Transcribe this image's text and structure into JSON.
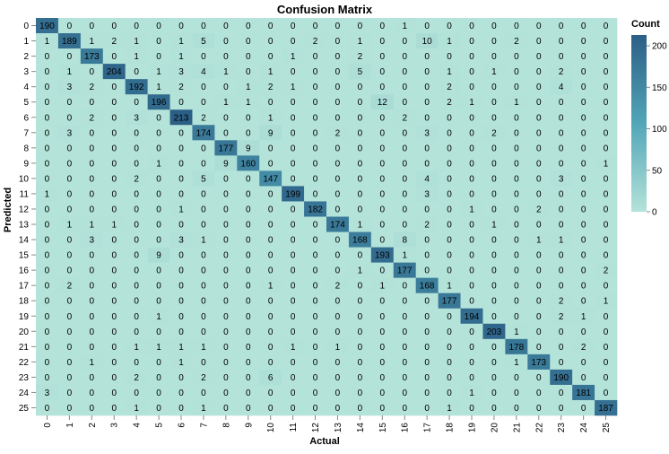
{
  "chart_data": {
    "type": "heatmap",
    "title": "Confusion Matrix",
    "xlabel": "Actual",
    "ylabel": "Predicted",
    "legend_title": "Count",
    "legend_ticks": [
      0,
      50,
      100,
      150,
      200
    ],
    "legend_placement": "right",
    "color_range": [
      0,
      213
    ],
    "color_low": "#b4e3d9",
    "color_high": "#2c5f86",
    "grid": false,
    "x_labels": [
      "0",
      "1",
      "2",
      "3",
      "4",
      "5",
      "6",
      "7",
      "8",
      "9",
      "10",
      "11",
      "12",
      "13",
      "14",
      "15",
      "16",
      "17",
      "18",
      "19",
      "20",
      "21",
      "22",
      "23",
      "24",
      "25"
    ],
    "y_labels": [
      "0",
      "1",
      "2",
      "3",
      "4",
      "5",
      "6",
      "7",
      "8",
      "9",
      "10",
      "11",
      "12",
      "13",
      "14",
      "15",
      "16",
      "17",
      "18",
      "19",
      "20",
      "21",
      "22",
      "23",
      "24",
      "25"
    ],
    "matrix": [
      [
        190,
        0,
        0,
        0,
        0,
        0,
        0,
        0,
        0,
        0,
        0,
        0,
        0,
        0,
        0,
        0,
        1,
        0,
        0,
        0,
        0,
        0,
        0,
        0,
        0,
        0
      ],
      [
        1,
        189,
        1,
        2,
        1,
        0,
        1,
        5,
        0,
        0,
        0,
        0,
        2,
        0,
        1,
        0,
        0,
        10,
        1,
        0,
        0,
        2,
        0,
        0,
        0,
        0
      ],
      [
        0,
        0,
        173,
        0,
        1,
        0,
        1,
        0,
        0,
        0,
        0,
        1,
        0,
        0,
        2,
        0,
        0,
        0,
        0,
        0,
        0,
        0,
        0,
        0,
        0,
        0
      ],
      [
        0,
        1,
        0,
        204,
        0,
        1,
        3,
        4,
        1,
        0,
        1,
        0,
        0,
        0,
        5,
        0,
        0,
        0,
        1,
        0,
        1,
        0,
        0,
        2,
        0,
        0
      ],
      [
        0,
        3,
        2,
        0,
        192,
        1,
        2,
        0,
        0,
        1,
        2,
        1,
        0,
        0,
        0,
        0,
        0,
        0,
        2,
        0,
        0,
        0,
        0,
        4,
        0,
        0
      ],
      [
        0,
        0,
        0,
        0,
        0,
        196,
        0,
        0,
        1,
        1,
        0,
        0,
        0,
        0,
        0,
        12,
        0,
        0,
        2,
        1,
        0,
        1,
        0,
        0,
        0,
        0
      ],
      [
        0,
        0,
        2,
        0,
        3,
        0,
        213,
        2,
        0,
        0,
        1,
        0,
        0,
        0,
        0,
        0,
        2,
        0,
        0,
        0,
        0,
        0,
        0,
        0,
        0,
        0
      ],
      [
        0,
        3,
        0,
        0,
        0,
        0,
        0,
        174,
        0,
        0,
        9,
        0,
        0,
        2,
        0,
        0,
        0,
        3,
        0,
        0,
        2,
        0,
        0,
        0,
        0,
        0
      ],
      [
        0,
        0,
        0,
        0,
        0,
        0,
        0,
        0,
        177,
        9,
        0,
        0,
        0,
        0,
        0,
        0,
        0,
        0,
        0,
        0,
        0,
        0,
        0,
        0,
        0,
        0
      ],
      [
        0,
        0,
        0,
        0,
        0,
        1,
        0,
        0,
        9,
        160,
        0,
        0,
        0,
        0,
        0,
        0,
        0,
        0,
        0,
        0,
        0,
        0,
        0,
        0,
        0,
        1
      ],
      [
        0,
        0,
        0,
        0,
        2,
        0,
        0,
        5,
        0,
        0,
        147,
        0,
        0,
        0,
        0,
        0,
        0,
        4,
        0,
        0,
        0,
        0,
        0,
        3,
        0,
        0
      ],
      [
        1,
        0,
        0,
        0,
        0,
        0,
        0,
        0,
        0,
        0,
        0,
        199,
        0,
        0,
        0,
        0,
        0,
        3,
        0,
        0,
        0,
        0,
        0,
        0,
        0,
        0
      ],
      [
        0,
        0,
        0,
        0,
        0,
        0,
        1,
        0,
        0,
        0,
        0,
        0,
        182,
        0,
        0,
        0,
        0,
        0,
        0,
        1,
        0,
        0,
        2,
        0,
        0,
        0
      ],
      [
        0,
        1,
        1,
        1,
        0,
        0,
        0,
        0,
        0,
        0,
        0,
        0,
        0,
        174,
        1,
        0,
        0,
        2,
        0,
        0,
        1,
        0,
        0,
        0,
        0,
        0
      ],
      [
        0,
        0,
        3,
        0,
        0,
        0,
        3,
        1,
        0,
        0,
        0,
        0,
        0,
        0,
        168,
        0,
        8,
        0,
        0,
        0,
        0,
        0,
        1,
        1,
        0,
        0
      ],
      [
        0,
        0,
        0,
        0,
        0,
        9,
        0,
        0,
        0,
        0,
        0,
        0,
        0,
        0,
        0,
        193,
        1,
        0,
        0,
        0,
        0,
        0,
        0,
        0,
        0,
        0
      ],
      [
        0,
        0,
        0,
        0,
        0,
        0,
        0,
        0,
        0,
        0,
        0,
        0,
        0,
        0,
        1,
        0,
        177,
        0,
        0,
        0,
        0,
        0,
        0,
        0,
        0,
        2
      ],
      [
        0,
        2,
        0,
        0,
        0,
        0,
        0,
        0,
        0,
        0,
        1,
        0,
        0,
        2,
        0,
        1,
        0,
        168,
        1,
        0,
        0,
        0,
        0,
        0,
        0,
        0
      ],
      [
        0,
        0,
        0,
        0,
        0,
        0,
        0,
        0,
        0,
        0,
        0,
        0,
        0,
        0,
        0,
        0,
        0,
        0,
        177,
        0,
        0,
        0,
        0,
        2,
        0,
        1
      ],
      [
        0,
        0,
        0,
        0,
        0,
        1,
        0,
        0,
        0,
        0,
        0,
        0,
        0,
        0,
        0,
        0,
        0,
        0,
        0,
        194,
        0,
        0,
        0,
        2,
        1,
        0
      ],
      [
        0,
        0,
        0,
        0,
        0,
        0,
        0,
        0,
        0,
        0,
        0,
        0,
        0,
        0,
        0,
        0,
        0,
        0,
        0,
        0,
        203,
        1,
        0,
        0,
        0,
        0
      ],
      [
        0,
        0,
        0,
        0,
        1,
        1,
        1,
        1,
        0,
        0,
        0,
        1,
        0,
        1,
        0,
        0,
        0,
        0,
        0,
        0,
        0,
        178,
        0,
        0,
        2,
        0
      ],
      [
        0,
        0,
        1,
        0,
        0,
        0,
        1,
        0,
        0,
        0,
        0,
        0,
        0,
        0,
        0,
        0,
        0,
        0,
        0,
        0,
        0,
        1,
        173,
        0,
        0,
        0
      ],
      [
        0,
        0,
        0,
        0,
        2,
        0,
        0,
        2,
        0,
        0,
        6,
        0,
        0,
        0,
        0,
        0,
        0,
        0,
        0,
        0,
        0,
        0,
        0,
        190,
        0,
        0
      ],
      [
        3,
        0,
        0,
        0,
        0,
        0,
        0,
        0,
        0,
        0,
        0,
        0,
        0,
        0,
        0,
        0,
        0,
        0,
        0,
        1,
        0,
        0,
        0,
        0,
        181,
        0
      ],
      [
        0,
        0,
        0,
        0,
        1,
        0,
        0,
        1,
        0,
        0,
        0,
        0,
        0,
        0,
        0,
        0,
        0,
        0,
        1,
        0,
        0,
        0,
        0,
        0,
        0,
        187
      ]
    ]
  }
}
